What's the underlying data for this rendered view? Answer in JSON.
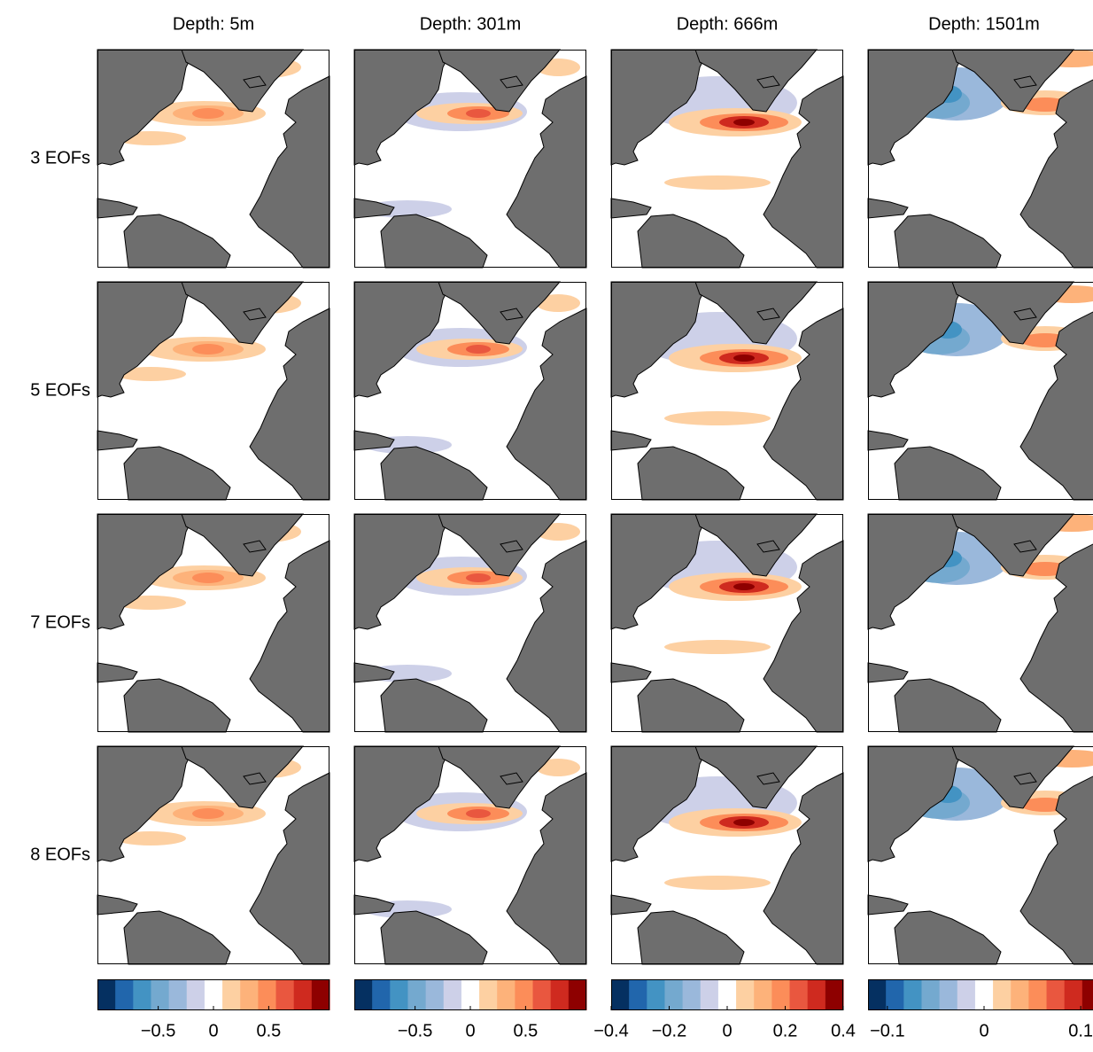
{
  "chart_data": {
    "type": "map-grid",
    "columns": [
      "Depth: 5m",
      "Depth: 301m",
      "Depth: 666m",
      "Depth: 1501m"
    ],
    "rows": [
      "3 EOFs",
      "5 EOFs",
      "7 EOFs",
      "8 EOFs"
    ],
    "colormap": [
      "#053061",
      "#2166ac",
      "#4393c3",
      "#74a9cf",
      "#9ab8db",
      "#cdd0e8",
      "#ffffff",
      "#fdd0a2",
      "#fdb27a",
      "#fc8d59",
      "#e9573f",
      "#cf2a1f",
      "#8e0000"
    ],
    "colorbars": [
      {
        "lim": [
          -1.05,
          1.05
        ],
        "ticks": [
          {
            "value": -0.5,
            "label": "−0.5"
          },
          0,
          0.5
        ]
      },
      {
        "lim": [
          -1.05,
          1.05
        ],
        "ticks": [
          {
            "value": -0.5,
            "label": "−0.5"
          },
          0,
          0.5
        ]
      },
      {
        "lim": [
          -0.4,
          0.4
        ],
        "ticks": [
          {
            "value": -0.4,
            "label": "−0.4"
          },
          {
            "value": -0.2,
            "label": "−0.2"
          },
          0,
          0.2,
          0.4
        ]
      },
      {
        "lim": [
          -0.12,
          0.12
        ],
        "ticks": [
          {
            "value": -0.1,
            "label": "−0.1"
          },
          0,
          0.1
        ]
      }
    ]
  }
}
